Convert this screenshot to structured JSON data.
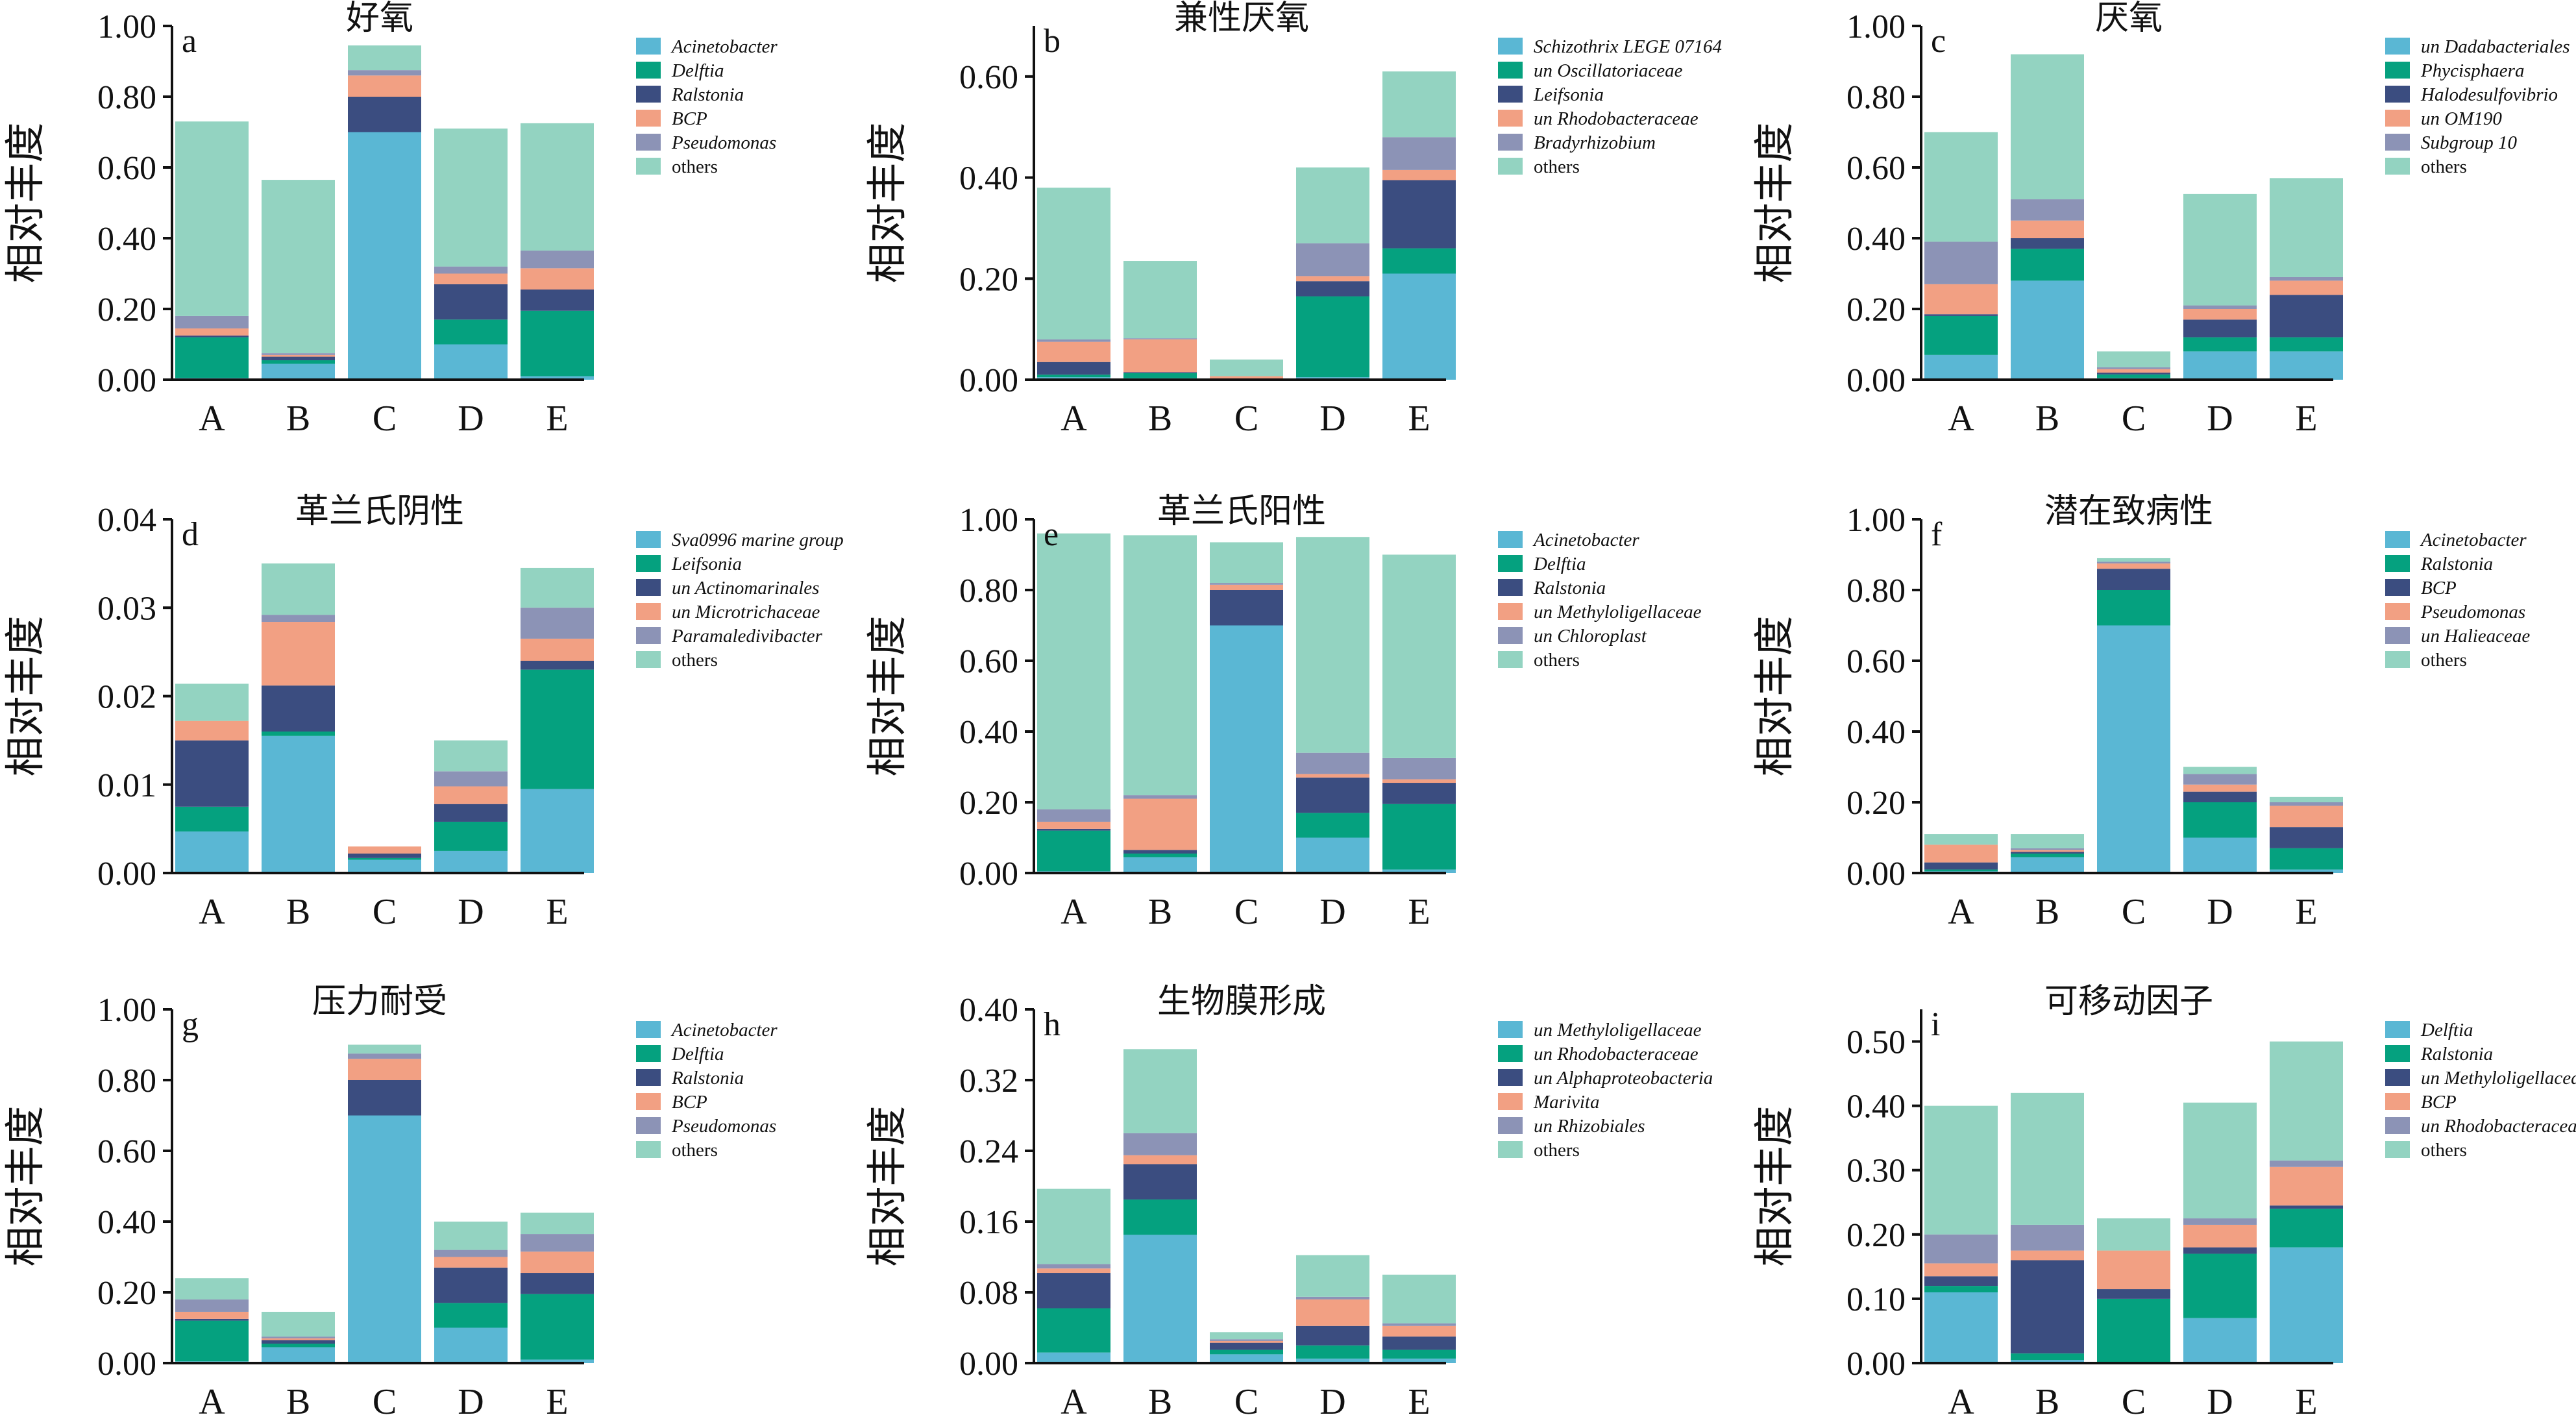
{
  "colors": {
    "series": [
      "#5ab7d4",
      "#05a17f",
      "#3b4d80",
      "#f2a083",
      "#8c93b6",
      "#93d3c1"
    ]
  },
  "chart_data": [
    {
      "id": "a",
      "type": "bar",
      "stacked": true,
      "letter": "a",
      "title": "好氧",
      "ylabel": "相对丰度",
      "ylim": [
        0,
        1.0
      ],
      "yticks": [
        "0.00",
        "0.20",
        "0.40",
        "0.60",
        "0.80",
        "1.00"
      ],
      "ytick_values": [
        0,
        0.2,
        0.4,
        0.6,
        0.8,
        1.0
      ],
      "categories": [
        "A",
        "B",
        "C",
        "D",
        "E"
      ],
      "series": [
        {
          "name": "Acinetobacter",
          "values": [
            0.005,
            0.045,
            0.7,
            0.1,
            0.01
          ]
        },
        {
          "name": "Delftia",
          "values": [
            0.115,
            0.01,
            0.0,
            0.07,
            0.185
          ]
        },
        {
          "name": "Ralstonia",
          "values": [
            0.005,
            0.01,
            0.1,
            0.1,
            0.06
          ]
        },
        {
          "name": "BCP",
          "values": [
            0.02,
            0.005,
            0.06,
            0.03,
            0.06
          ]
        },
        {
          "name": "Pseudomonas",
          "values": [
            0.035,
            0.005,
            0.015,
            0.02,
            0.05
          ]
        },
        {
          "name": "others",
          "values": [
            0.55,
            0.49,
            0.07,
            0.39,
            0.36
          ]
        }
      ]
    },
    {
      "id": "b",
      "type": "bar",
      "stacked": true,
      "letter": "b",
      "title": "兼性厌氧",
      "ylabel": "相对丰度",
      "ylim": [
        0,
        0.7
      ],
      "yticks": [
        "0.00",
        "0.20",
        "0.40",
        "0.60"
      ],
      "ytick_values": [
        0,
        0.2,
        0.4,
        0.6
      ],
      "categories": [
        "A",
        "B",
        "C",
        "D",
        "E"
      ],
      "series": [
        {
          "name": "Schizothrix LEGE 07164",
          "values": [
            0.005,
            0.003,
            0.0,
            0.005,
            0.21
          ]
        },
        {
          "name": "un Oscillatoriaceae",
          "values": [
            0.005,
            0.01,
            0.002,
            0.16,
            0.05
          ]
        },
        {
          "name": "Leifsonia",
          "values": [
            0.025,
            0.002,
            0.0,
            0.03,
            0.135
          ]
        },
        {
          "name": "un Rhodobacteraceae",
          "values": [
            0.04,
            0.065,
            0.005,
            0.01,
            0.02
          ]
        },
        {
          "name": "Bradyrhizobium",
          "values": [
            0.005,
            0.002,
            0.0,
            0.065,
            0.065
          ]
        },
        {
          "name": "others",
          "values": [
            0.3,
            0.153,
            0.033,
            0.15,
            0.13
          ]
        }
      ]
    },
    {
      "id": "c",
      "type": "bar",
      "stacked": true,
      "letter": "c",
      "title": "厌氧",
      "ylabel": "相对丰度",
      "ylim": [
        0,
        1.0
      ],
      "yticks": [
        "0.00",
        "0.20",
        "0.40",
        "0.60",
        "0.80",
        "1.00"
      ],
      "ytick_values": [
        0,
        0.2,
        0.4,
        0.6,
        0.8,
        1.0
      ],
      "categories": [
        "A",
        "B",
        "C",
        "D",
        "E"
      ],
      "series": [
        {
          "name": "un Dadabacteriales",
          "values": [
            0.07,
            0.28,
            0.005,
            0.08,
            0.08
          ]
        },
        {
          "name": "Phycisphaera",
          "values": [
            0.11,
            0.09,
            0.01,
            0.04,
            0.04
          ]
        },
        {
          "name": "Halodesulfovibrio",
          "values": [
            0.005,
            0.03,
            0.005,
            0.05,
            0.12
          ]
        },
        {
          "name": "un OM190",
          "values": [
            0.085,
            0.05,
            0.01,
            0.03,
            0.04
          ]
        },
        {
          "name": "Subgroup 10",
          "values": [
            0.12,
            0.06,
            0.005,
            0.01,
            0.01
          ]
        },
        {
          "name": "others",
          "values": [
            0.31,
            0.41,
            0.045,
            0.315,
            0.28
          ]
        }
      ]
    },
    {
      "id": "d",
      "type": "bar",
      "stacked": true,
      "letter": "d",
      "title": "革兰氏阴性",
      "ylabel": "相对丰度",
      "ylim": [
        0,
        0.04
      ],
      "yticks": [
        "0.00",
        "0.01",
        "0.02",
        "0.03",
        "0.04"
      ],
      "ytick_values": [
        0,
        0.01,
        0.02,
        0.03,
        0.04
      ],
      "categories": [
        "A",
        "B",
        "C",
        "D",
        "E"
      ],
      "series": [
        {
          "name": "Sva0996 marine group",
          "values": [
            0.0047,
            0.0155,
            0.0015,
            0.0025,
            0.0095
          ]
        },
        {
          "name": "Leifsonia",
          "values": [
            0.0028,
            0.0005,
            0.0002,
            0.0033,
            0.0135
          ]
        },
        {
          "name": "un Actinomarinales",
          "values": [
            0.0075,
            0.0052,
            0.0005,
            0.002,
            0.001
          ]
        },
        {
          "name": "un Microtrichaceae",
          "values": [
            0.0022,
            0.0072,
            0.0008,
            0.002,
            0.0025
          ]
        },
        {
          "name": "Paramaledivibacter",
          "values": [
            0.0,
            0.0008,
            0.0,
            0.0017,
            0.0035
          ]
        },
        {
          "name": "others",
          "values": [
            0.0042,
            0.0058,
            0.0,
            0.0035,
            0.0045
          ]
        }
      ]
    },
    {
      "id": "e",
      "type": "bar",
      "stacked": true,
      "letter": "e",
      "title": "革兰氏阳性",
      "ylabel": "相对丰度",
      "ylim": [
        0,
        1.0
      ],
      "yticks": [
        "0.00",
        "0.20",
        "0.40",
        "0.60",
        "0.80",
        "1.00"
      ],
      "ytick_values": [
        0,
        0.2,
        0.4,
        0.6,
        0.8,
        1.0
      ],
      "categories": [
        "A",
        "B",
        "C",
        "D",
        "E"
      ],
      "series": [
        {
          "name": "Acinetobacter",
          "values": [
            0.005,
            0.045,
            0.7,
            0.1,
            0.01
          ]
        },
        {
          "name": "Delftia",
          "values": [
            0.115,
            0.01,
            0.0,
            0.07,
            0.185
          ]
        },
        {
          "name": "Ralstonia",
          "values": [
            0.005,
            0.01,
            0.1,
            0.1,
            0.06
          ]
        },
        {
          "name": "un Methyloligellaceae",
          "values": [
            0.02,
            0.145,
            0.015,
            0.01,
            0.01
          ]
        },
        {
          "name": "un Chloroplast",
          "values": [
            0.035,
            0.01,
            0.005,
            0.06,
            0.06
          ]
        },
        {
          "name": "others",
          "values": [
            0.78,
            0.735,
            0.115,
            0.61,
            0.575
          ]
        }
      ]
    },
    {
      "id": "f",
      "type": "bar",
      "stacked": true,
      "letter": "f",
      "title": "潜在致病性",
      "ylabel": "相对丰度",
      "ylim": [
        0,
        1.0
      ],
      "yticks": [
        "0.00",
        "0.20",
        "0.40",
        "0.60",
        "0.80",
        "1.00"
      ],
      "ytick_values": [
        0,
        0.2,
        0.4,
        0.6,
        0.8,
        1.0
      ],
      "categories": [
        "A",
        "B",
        "C",
        "D",
        "E"
      ],
      "series": [
        {
          "name": "Acinetobacter",
          "values": [
            0.005,
            0.045,
            0.7,
            0.1,
            0.01
          ]
        },
        {
          "name": "Ralstonia",
          "values": [
            0.005,
            0.01,
            0.1,
            0.1,
            0.06
          ]
        },
        {
          "name": "BCP",
          "values": [
            0.02,
            0.005,
            0.06,
            0.03,
            0.06
          ]
        },
        {
          "name": "Pseudomonas",
          "values": [
            0.05,
            0.005,
            0.015,
            0.02,
            0.06
          ]
        },
        {
          "name": "un Halieaceae",
          "values": [
            0.0,
            0.005,
            0.005,
            0.03,
            0.01
          ]
        },
        {
          "name": "others",
          "values": [
            0.03,
            0.04,
            0.01,
            0.02,
            0.015
          ]
        }
      ]
    },
    {
      "id": "g",
      "type": "bar",
      "stacked": true,
      "letter": "g",
      "title": "压力耐受",
      "ylabel": "相对丰度",
      "ylim": [
        0,
        1.0
      ],
      "yticks": [
        "0.00",
        "0.20",
        "0.40",
        "0.60",
        "0.80",
        "1.00"
      ],
      "ytick_values": [
        0,
        0.2,
        0.4,
        0.6,
        0.8,
        1.0
      ],
      "categories": [
        "A",
        "B",
        "C",
        "D",
        "E"
      ],
      "series": [
        {
          "name": "Acinetobacter",
          "values": [
            0.005,
            0.045,
            0.7,
            0.1,
            0.01
          ]
        },
        {
          "name": "Delftia",
          "values": [
            0.115,
            0.01,
            0.0,
            0.07,
            0.185
          ]
        },
        {
          "name": "Ralstonia",
          "values": [
            0.005,
            0.01,
            0.1,
            0.1,
            0.06
          ]
        },
        {
          "name": "BCP",
          "values": [
            0.02,
            0.005,
            0.06,
            0.03,
            0.06
          ]
        },
        {
          "name": "Pseudomonas",
          "values": [
            0.035,
            0.005,
            0.015,
            0.02,
            0.05
          ]
        },
        {
          "name": "others",
          "values": [
            0.06,
            0.07,
            0.025,
            0.08,
            0.06
          ]
        }
      ]
    },
    {
      "id": "h",
      "type": "bar",
      "stacked": true,
      "letter": "h",
      "title": "生物膜形成",
      "ylabel": "相对丰度",
      "ylim": [
        0,
        0.4
      ],
      "yticks": [
        "0.00",
        "0.08",
        "0.16",
        "0.24",
        "0.32",
        "0.40"
      ],
      "ytick_values": [
        0,
        0.08,
        0.16,
        0.24,
        0.32,
        0.4
      ],
      "categories": [
        "A",
        "B",
        "C",
        "D",
        "E"
      ],
      "series": [
        {
          "name": "un Methyloligellaceae",
          "values": [
            0.012,
            0.145,
            0.01,
            0.005,
            0.005
          ]
        },
        {
          "name": "un Rhodobacteraceae",
          "values": [
            0.05,
            0.04,
            0.005,
            0.015,
            0.01
          ]
        },
        {
          "name": "un Alphaproteobacteria",
          "values": [
            0.04,
            0.04,
            0.008,
            0.022,
            0.015
          ]
        },
        {
          "name": "Marivita",
          "values": [
            0.005,
            0.01,
            0.002,
            0.03,
            0.012
          ]
        },
        {
          "name": "un Rhizobiales",
          "values": [
            0.005,
            0.025,
            0.002,
            0.003,
            0.003
          ]
        },
        {
          "name": "others",
          "values": [
            0.085,
            0.095,
            0.008,
            0.047,
            0.055
          ]
        }
      ]
    },
    {
      "id": "i",
      "type": "bar",
      "stacked": true,
      "letter": "i",
      "title": "可移动因子",
      "ylabel": "相对丰度",
      "ylim": [
        0,
        0.55
      ],
      "yticks": [
        "0.00",
        "0.10",
        "0.20",
        "0.30",
        "0.40",
        "0.50"
      ],
      "ytick_values": [
        0,
        0.1,
        0.2,
        0.3,
        0.4,
        0.5
      ],
      "categories": [
        "A",
        "B",
        "C",
        "D",
        "E"
      ],
      "series": [
        {
          "name": "Delftia",
          "values": [
            0.11,
            0.005,
            0.0,
            0.07,
            0.18
          ]
        },
        {
          "name": "Ralstonia",
          "values": [
            0.01,
            0.01,
            0.1,
            0.1,
            0.06
          ]
        },
        {
          "name": "un Methyloligellaceae",
          "values": [
            0.015,
            0.145,
            0.015,
            0.01,
            0.005
          ]
        },
        {
          "name": "BCP",
          "values": [
            0.02,
            0.015,
            0.06,
            0.035,
            0.06
          ]
        },
        {
          "name": "un Rhodobacteraceae",
          "values": [
            0.045,
            0.04,
            0.0,
            0.01,
            0.01
          ]
        },
        {
          "name": "others",
          "values": [
            0.2,
            0.205,
            0.05,
            0.18,
            0.185
          ]
        }
      ]
    }
  ]
}
